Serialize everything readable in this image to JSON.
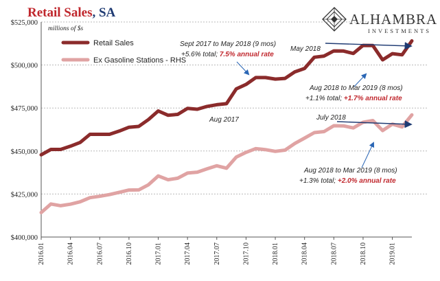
{
  "title": "Retail Sales",
  "title_suffix": ", SA",
  "units": "millions of $s",
  "logo": {
    "name": "ALHAMBRA",
    "sub": "INVESTMENTS"
  },
  "colors": {
    "retail": "#8b2b2b",
    "ex_gas": "#e0a3a3",
    "title": "#c0272d",
    "accent": "#1f3b73",
    "annotation_red": "#c0272d"
  },
  "chart_data": {
    "type": "line",
    "x": [
      "2016.01",
      "2016.02",
      "2016.03",
      "2016.04",
      "2016.05",
      "2016.06",
      "2016.07",
      "2016.08",
      "2016.09",
      "2016.10",
      "2016.11",
      "2016.12",
      "2017.01",
      "2017.02",
      "2017.03",
      "2017.04",
      "2017.05",
      "2017.06",
      "2017.07",
      "2017.08",
      "2017.09",
      "2017.10",
      "2017.11",
      "2017.12",
      "2018.01",
      "2018.02",
      "2018.03",
      "2018.04",
      "2018.05",
      "2018.06",
      "2018.07",
      "2018.08",
      "2018.09",
      "2018.10",
      "2018.11",
      "2018.12",
      "2019.01",
      "2019.02",
      "2019.03"
    ],
    "xtick_labels": [
      "2016.01",
      "2016.04",
      "2016.07",
      "2016.10",
      "2017.01",
      "2017.04",
      "2017.07",
      "2017.10",
      "2018.01",
      "2018.04",
      "2018.07",
      "2018.10",
      "2019.01"
    ],
    "ylim": [
      400000,
      525000
    ],
    "yticks": [
      "$400,000",
      "$425,000",
      "$450,000",
      "$475,000",
      "$500,000",
      "$525,000"
    ],
    "ytick_values": [
      400000,
      425000,
      450000,
      475000,
      500000,
      525000
    ],
    "series": [
      {
        "name": "Retail Sales",
        "axis": "left",
        "values": [
          447800,
          450900,
          450900,
          452800,
          455000,
          459700,
          459700,
          459700,
          461600,
          463800,
          464300,
          468300,
          473300,
          470800,
          471300,
          474800,
          474300,
          475900,
          476900,
          477500,
          486100,
          488700,
          492700,
          492700,
          491800,
          492200,
          496000,
          498000,
          504500,
          505200,
          508200,
          508100,
          506700,
          511400,
          511300,
          503000,
          506600,
          505900,
          514000
        ]
      },
      {
        "name": "Ex Gasoline Stations - RHS",
        "axis": "right",
        "values": [
          414200,
          419200,
          418200,
          419100,
          420500,
          422900,
          423700,
          424700,
          426000,
          427300,
          427400,
          430400,
          435500,
          433300,
          434200,
          437200,
          437700,
          439600,
          441400,
          440000,
          446500,
          449200,
          451400,
          450800,
          449800,
          450500,
          454400,
          457500,
          460700,
          461300,
          464700,
          464600,
          463400,
          466700,
          467700,
          461900,
          465600,
          464000,
          471000
        ]
      }
    ],
    "legend": [
      "Retail Sales",
      "Ex Gasoline Stations - RHS"
    ],
    "annotations": [
      {
        "id": "a1",
        "parts": [
          {
            "t": "Sept 2017 to May 2018 (9 mos)",
            "style": "dark"
          }
        ]
      },
      {
        "id": "a2",
        "parts": [
          {
            "t": "+5.6% total; ",
            "style": "dark"
          },
          {
            "t": "7.5% annual  rate",
            "style": "red"
          }
        ]
      },
      {
        "id": "a3",
        "parts": [
          {
            "t": "May 2018",
            "style": "dark"
          }
        ]
      },
      {
        "id": "a4",
        "parts": [
          {
            "t": "Aug 2017",
            "style": "dark"
          }
        ]
      },
      {
        "id": "a5",
        "parts": [
          {
            "t": "Aug 2018 to Mar 2019 (8 mos)",
            "style": "dark"
          }
        ]
      },
      {
        "id": "a6",
        "parts": [
          {
            "t": "+1.1% total; ",
            "style": "plain"
          },
          {
            "t": "+1.7% annual  rate",
            "style": "red"
          }
        ]
      },
      {
        "id": "a7",
        "parts": [
          {
            "t": "July 2018",
            "style": "dark"
          }
        ]
      },
      {
        "id": "a8",
        "parts": [
          {
            "t": "Aug 2018 to Mar 2019 (8 mos)",
            "style": "dark"
          }
        ]
      },
      {
        "id": "a9",
        "parts": [
          {
            "t": "+1.3% total; ",
            "style": "plain"
          },
          {
            "t": "+2.0% annual  rate",
            "style": "red"
          }
        ]
      }
    ],
    "grid": true
  }
}
